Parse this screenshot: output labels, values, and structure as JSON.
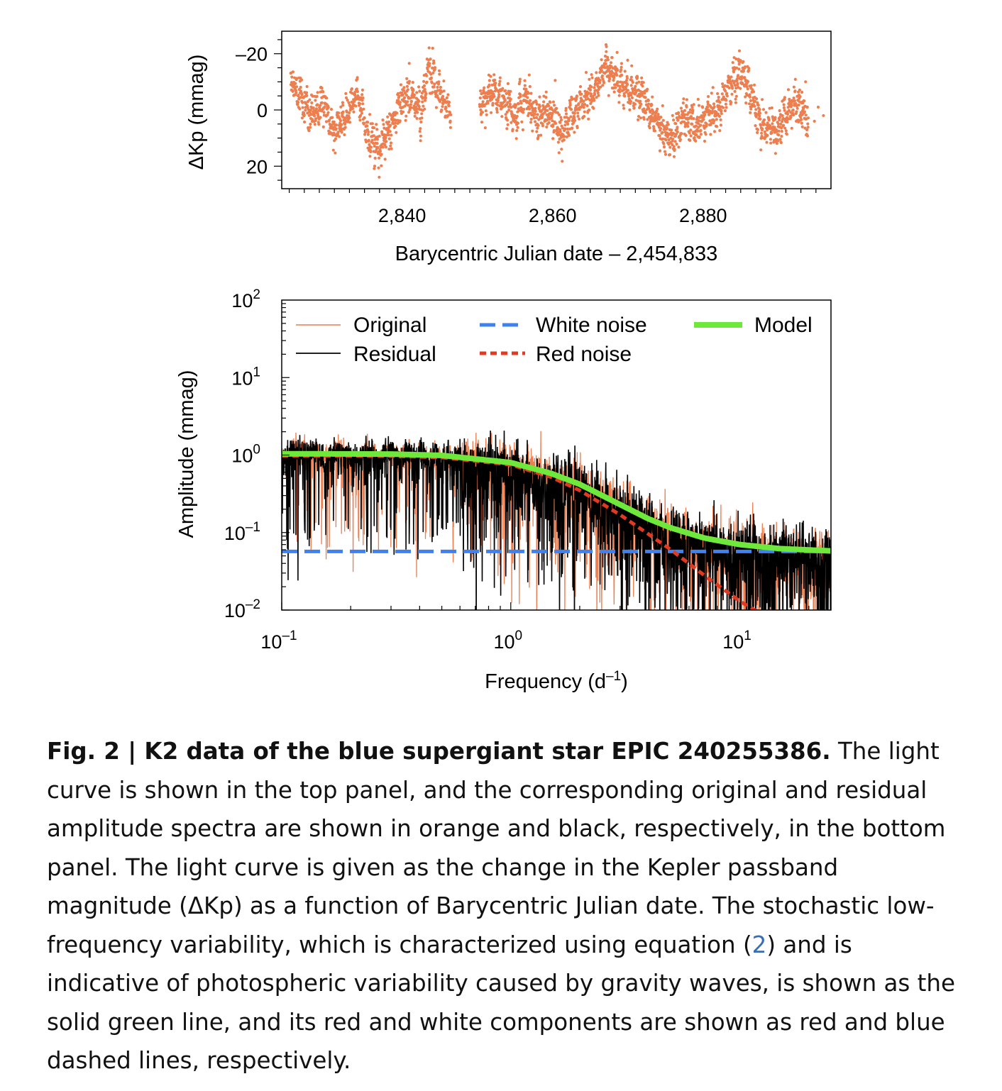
{
  "chart_data": [
    {
      "type": "scatter",
      "panel": "top",
      "xlabel": "Barycentric Julian date – 2,454,833",
      "ylabel": "ΔKp (mmag)",
      "xlim": [
        2824,
        2897
      ],
      "ylim": [
        28,
        -28
      ],
      "y_inverted": true,
      "xticks": [
        2840,
        2860,
        2880
      ],
      "xtick_labels": [
        "2,840",
        "2,860",
        "2,880"
      ],
      "yticks": [
        -20,
        0,
        20
      ],
      "ytick_labels": [
        "–20",
        "0",
        "20"
      ],
      "color": "#ec7e4f",
      "segments": [
        {
          "start": 2825.2,
          "end": 2846.5,
          "gap_after": true
        },
        {
          "start": 2850.3,
          "end": 2894.0
        }
      ],
      "trend_points": [
        [
          2825.2,
          -10
        ],
        [
          2826.5,
          -4
        ],
        [
          2828,
          2
        ],
        [
          2829.5,
          -4
        ],
        [
          2831,
          8
        ],
        [
          2832.5,
          2
        ],
        [
          2834,
          -6
        ],
        [
          2835.5,
          10
        ],
        [
          2837,
          14
        ],
        [
          2838,
          8
        ],
        [
          2839.5,
          0
        ],
        [
          2841,
          -6
        ],
        [
          2842.5,
          2
        ],
        [
          2843.5,
          -16
        ],
        [
          2845,
          -6
        ],
        [
          2846.5,
          2
        ],
        [
          2850.3,
          0
        ],
        [
          2852,
          -8
        ],
        [
          2853.5,
          -4
        ],
        [
          2855,
          2
        ],
        [
          2856.5,
          -4
        ],
        [
          2858,
          4
        ],
        [
          2859.5,
          0
        ],
        [
          2861,
          8
        ],
        [
          2862.5,
          2
        ],
        [
          2864,
          -4
        ],
        [
          2865.5,
          -6
        ],
        [
          2867,
          -16
        ],
        [
          2868.5,
          -10
        ],
        [
          2870,
          -8
        ],
        [
          2871.5,
          -4
        ],
        [
          2873,
          0
        ],
        [
          2874.5,
          6
        ],
        [
          2876,
          10
        ],
        [
          2877.5,
          2
        ],
        [
          2879,
          6
        ],
        [
          2880.5,
          2
        ],
        [
          2882,
          0
        ],
        [
          2883.5,
          -8
        ],
        [
          2885,
          -14
        ],
        [
          2886.5,
          -4
        ],
        [
          2888,
          6
        ],
        [
          2889.5,
          8
        ],
        [
          2891,
          2
        ],
        [
          2892.5,
          -2
        ],
        [
          2894,
          4
        ]
      ]
    },
    {
      "type": "line",
      "panel": "bottom",
      "xlabel": "Frequency (d",
      "xlabel_sup": "–1",
      "xlabel_end": ")",
      "ylabel": "Amplitude (mmag)",
      "xscale": "log",
      "yscale": "log",
      "xlim": [
        0.1,
        25
      ],
      "ylim": [
        0.01,
        100
      ],
      "xticks": [
        0.1,
        1,
        10
      ],
      "xtick_labels": [
        {
          "base": "10",
          "exp": "–1"
        },
        {
          "base": "10",
          "exp": "0"
        },
        {
          "base": "10",
          "exp": "1"
        }
      ],
      "yticks": [
        0.01,
        0.1,
        1,
        10,
        100
      ],
      "ytick_labels": [
        {
          "base": "10",
          "exp": "–2"
        },
        {
          "base": "10",
          "exp": "–1"
        },
        {
          "base": "10",
          "exp": "0"
        },
        {
          "base": "10",
          "exp": "1"
        },
        {
          "base": "10",
          "exp": "2"
        }
      ],
      "legend": "top",
      "series": [
        {
          "name": "Original",
          "color": "#ec7e4f",
          "style": "thin-solid"
        },
        {
          "name": "Residual",
          "color": "#000000",
          "style": "solid"
        },
        {
          "name": "White noise",
          "color": "#3d82f0",
          "style": "dashed",
          "value": 0.057
        },
        {
          "name": "Red noise",
          "color": "#e03a22",
          "style": "dotted",
          "points": [
            [
              0.1,
              0.98
            ],
            [
              0.3,
              0.97
            ],
            [
              0.5,
              0.93
            ],
            [
              1,
              0.75
            ],
            [
              1.5,
              0.52
            ],
            [
              2,
              0.35
            ],
            [
              3,
              0.17
            ],
            [
              4,
              0.095
            ],
            [
              5,
              0.06
            ],
            [
              7,
              0.028
            ],
            [
              10,
              0.013
            ],
            [
              12,
              0.0095
            ]
          ]
        },
        {
          "name": "Model",
          "color": "#6ee83a",
          "style": "thick-solid",
          "points": [
            [
              0.1,
              1.04
            ],
            [
              0.3,
              1.03
            ],
            [
              0.5,
              0.99
            ],
            [
              1,
              0.8
            ],
            [
              1.5,
              0.58
            ],
            [
              2,
              0.42
            ],
            [
              3,
              0.23
            ],
            [
              4,
              0.15
            ],
            [
              5,
              0.115
            ],
            [
              7,
              0.085
            ],
            [
              10,
              0.07
            ],
            [
              15,
              0.062
            ],
            [
              25,
              0.058
            ]
          ]
        }
      ]
    }
  ],
  "caption": {
    "label": "Fig. 2 | K2 data of the blue supergiant star EPIC 240255386.",
    "text_before_ref": " The light curve is shown in the top panel, and the corresponding original and residual amplitude spectra are shown in orange and black, respectively, in the bottom panel. The light curve is given as the change in the Kepler passband magnitude (ΔKp) as a function of Barycentric Julian date. The stochastic low-frequency variability, which is characterized using equation (",
    "ref": "2",
    "text_after_ref": ") and is indicative of photospheric variability caused by gravity waves, is shown as the solid green line, and its red and white components are shown as red and blue dashed lines, respectively."
  }
}
